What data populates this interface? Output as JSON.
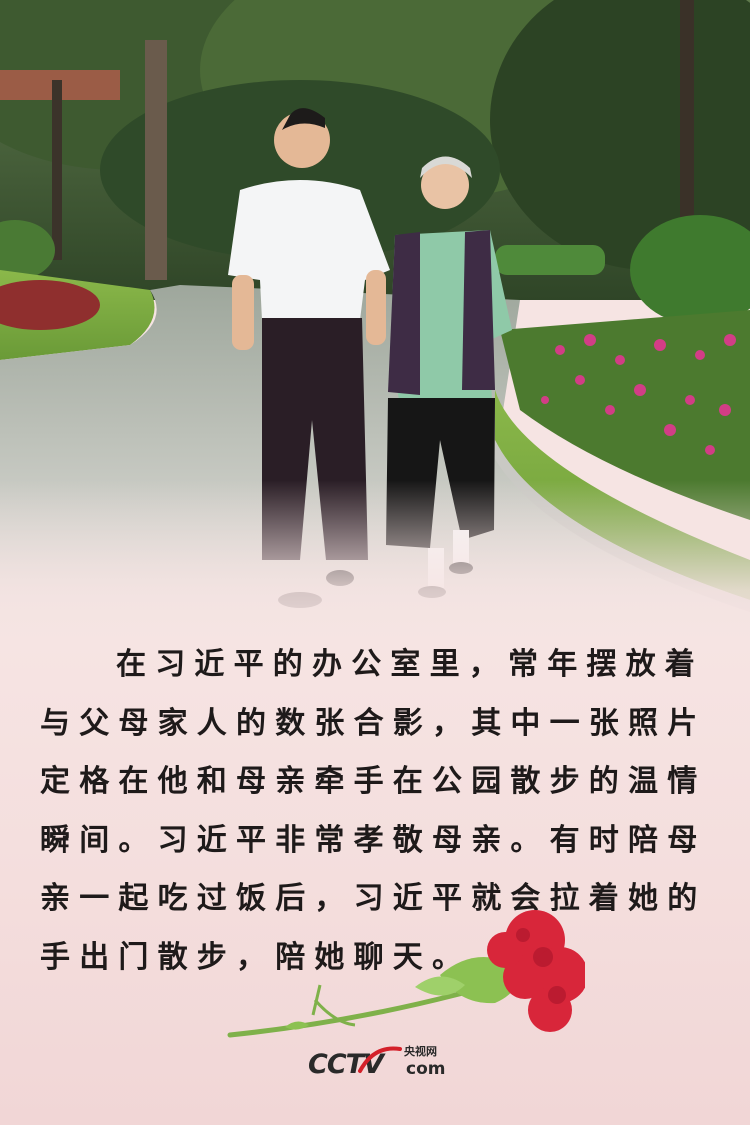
{
  "article": {
    "lines": [
      "在习近平的办公室里，常年摆放着",
      "与父母家人的数张合影，其中一张照片",
      "定格在他和母亲牵手在公园散步的温情",
      "瞬间。习近平非常孝敬母亲。有时陪母",
      "亲一起吃过饭后，习近平就会拉着她的",
      "手出门散步，陪她聊天。"
    ]
  },
  "logo": {
    "wordmark": "CCTV",
    "site_name_cn": "央视网",
    "domain": "com"
  },
  "colors": {
    "background": "#f6e4e3",
    "text": "#1e1a1a",
    "carnation": "#d8263a",
    "stem": "#7fb14a",
    "logo_red": "#d4202a"
  },
  "icons": {
    "flower": "carnation-icon"
  }
}
